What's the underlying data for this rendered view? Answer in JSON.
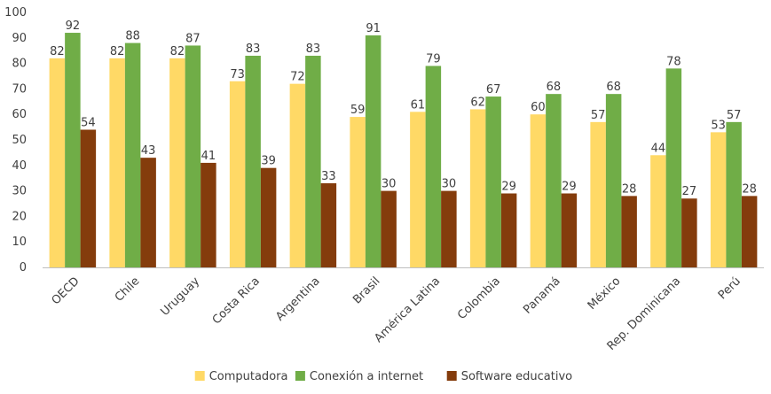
{
  "chart_data": {
    "type": "bar",
    "categories": [
      "OECD",
      "Chile",
      "Uruguay",
      "Costa Rica",
      "Argentina",
      "Brasil",
      "América Latina",
      "Colombia",
      "Panamá",
      "México",
      "Rep. Dominicana",
      "Perú"
    ],
    "series": [
      {
        "name": "Computadora",
        "color": "#FFD966",
        "values": [
          82,
          82,
          82,
          73,
          72,
          59,
          61,
          62,
          60,
          57,
          44,
          53
        ]
      },
      {
        "name": "Conexión a internet",
        "color": "#70AD47",
        "values": [
          92,
          88,
          87,
          83,
          83,
          91,
          79,
          67,
          68,
          68,
          78,
          57
        ]
      },
      {
        "name": "Software educativo",
        "color": "#843C0C",
        "values": [
          54,
          43,
          41,
          39,
          33,
          30,
          30,
          29,
          29,
          28,
          27,
          28
        ]
      }
    ],
    "ylim": [
      0,
      100
    ],
    "yticks": [
      0,
      10,
      20,
      30,
      40,
      50,
      60,
      70,
      80,
      90,
      100
    ],
    "grid": false,
    "data_labels": true,
    "legend_position": "bottom"
  }
}
